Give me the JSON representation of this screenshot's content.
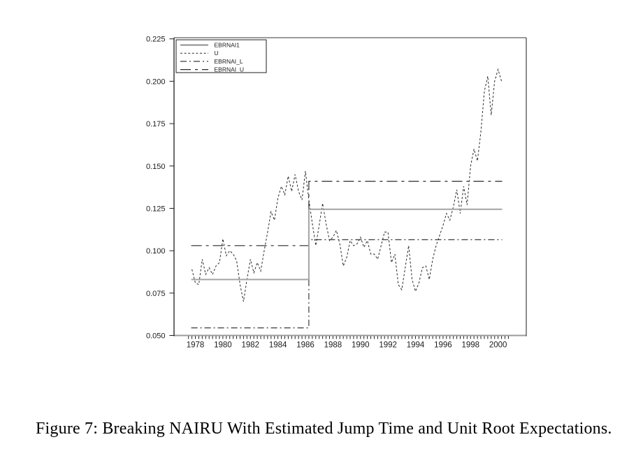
{
  "caption": {
    "text": "Figure 7: Breaking NAIRU With Estimated Jump Time and Unit Root Expectations."
  },
  "chart_data": {
    "type": "line",
    "title": "",
    "xlabel": "",
    "ylabel": "",
    "x_unit": "year (quarterly data)",
    "xlim": [
      1976.45,
      2002.05
    ],
    "ylim": [
      0.05,
      0.225
    ],
    "grid": false,
    "y_ticks": [
      0.225,
      0.2,
      0.175,
      0.15,
      0.125,
      0.1,
      0.075,
      0.05
    ],
    "y_tick_labels": [
      "0.225",
      "0.200",
      "0.175",
      "0.150",
      "0.125",
      "0.100",
      "0.075",
      "0.050"
    ],
    "x_ticks": [
      1978,
      1980,
      1982,
      1984,
      1986,
      1988,
      1990,
      1992,
      1994,
      1996,
      1998,
      2000
    ],
    "x_minor_ticks": {
      "start": 1977.5,
      "end": 2000.75,
      "step": 0.25
    },
    "legend": {
      "position": "top-left",
      "entries": [
        "EBRNAI1",
        "U",
        "EBRNAI_L",
        "EBRNAI_U"
      ]
    },
    "frame_color": "#9b9b9b",
    "axis_color": "#1c1c1c",
    "jump_time": 1986.25,
    "series": [
      {
        "name": "EBRNAI1",
        "line_style": "solid",
        "color": "#a4a4a4",
        "width": 2,
        "step": {
          "x_start": 1977.7,
          "x_jump": 1986.25,
          "x_end": 2000.3,
          "pre": 0.083,
          "post": 0.1245
        }
      },
      {
        "name": "U",
        "line_style": "dash",
        "color": "#2a2a2a",
        "width": 1,
        "x_start": 1977.75,
        "x_step": 0.25,
        "values": [
          0.089,
          0.081,
          0.08,
          0.095,
          0.086,
          0.09,
          0.086,
          0.091,
          0.093,
          0.107,
          0.097,
          0.1,
          0.098,
          0.094,
          0.08,
          0.07,
          0.083,
          0.095,
          0.087,
          0.093,
          0.088,
          0.1,
          0.111,
          0.123,
          0.118,
          0.131,
          0.138,
          0.133,
          0.144,
          0.135,
          0.145,
          0.135,
          0.13,
          0.147,
          0.13,
          0.116,
          0.103,
          0.115,
          0.128,
          0.116,
          0.106,
          0.108,
          0.112,
          0.104,
          0.091,
          0.096,
          0.106,
          0.103,
          0.104,
          0.108,
          0.102,
          0.106,
          0.098,
          0.098,
          0.095,
          0.103,
          0.111,
          0.111,
          0.093,
          0.098,
          0.08,
          0.077,
          0.09,
          0.103,
          0.083,
          0.076,
          0.081,
          0.09,
          0.091,
          0.083,
          0.095,
          0.103,
          0.109,
          0.115,
          0.122,
          0.118,
          0.126,
          0.136,
          0.122,
          0.138,
          0.127,
          0.15,
          0.16,
          0.153,
          0.17,
          0.194,
          0.203,
          0.18,
          0.2,
          0.207,
          0.2
        ]
      },
      {
        "name": "EBRNAI_L",
        "line_style": "dashdot",
        "color": "#3a3a3a",
        "width": 1.2,
        "step": {
          "x_start": 1977.7,
          "x_jump": 1986.25,
          "x_end": 2000.3,
          "pre": 0.0545,
          "post": 0.1065
        }
      },
      {
        "name": "EBRNAI_U",
        "line_style": "longdashdot",
        "color": "#2a2a2a",
        "width": 1.2,
        "step": {
          "x_start": 1977.7,
          "x_jump": 1986.25,
          "x_end": 2000.3,
          "pre": 0.103,
          "post": 0.141
        }
      }
    ]
  }
}
